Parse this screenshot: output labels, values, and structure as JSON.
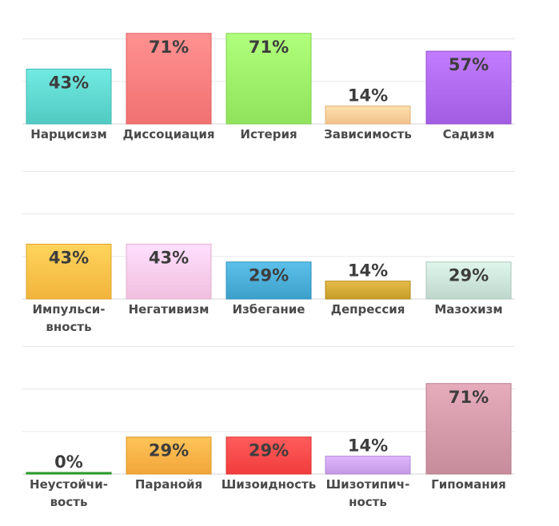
{
  "chart_data": [
    {
      "type": "bar",
      "ylim": [
        0,
        100
      ],
      "grid": true,
      "categories": [
        [
          "Нарцисизм"
        ],
        [
          "Диссоциация"
        ],
        [
          "Истерия"
        ],
        [
          "Зависимость"
        ],
        [
          "Садизм"
        ]
      ],
      "values": [
        43,
        71,
        71,
        14,
        57
      ],
      "value_labels": [
        "43%",
        "71%",
        "71%",
        "14%",
        "57%"
      ],
      "colors": [
        "#5fd8d0",
        "#ff7f7f",
        "#9ef06a",
        "#ffcf9a",
        "#b06af0"
      ]
    },
    {
      "type": "bar",
      "ylim": [
        0,
        100
      ],
      "grid": true,
      "categories": [
        [
          "Импульси-",
          "вность"
        ],
        [
          "Негативизм"
        ],
        [
          "Избегание"
        ],
        [
          "Депрессия"
        ],
        [
          "Мазохизм"
        ]
      ],
      "values": [
        43,
        43,
        29,
        14,
        29
      ],
      "value_labels": [
        "43%",
        "43%",
        "29%",
        "14%",
        "29%"
      ],
      "colors": [
        "#ffc24a",
        "#ffcdec",
        "#4aaed8",
        "#d4aa36",
        "#cce4da"
      ]
    },
    {
      "type": "bar",
      "ylim": [
        0,
        100
      ],
      "grid": true,
      "categories": [
        [
          "Неустойчи-",
          "вость"
        ],
        [
          "Паранойя"
        ],
        [
          "Шизоидность"
        ],
        [
          "Шизотипич-",
          "ность"
        ],
        [
          "Гипомания"
        ]
      ],
      "values": [
        0,
        29,
        29,
        14,
        71
      ],
      "value_labels": [
        "0%",
        "29%",
        "29%",
        "14%",
        "71%"
      ],
      "colors": [
        "#3aa83a",
        "#ffb347",
        "#ff4a4a",
        "#cfa6f0",
        "#d49aaa"
      ]
    }
  ]
}
